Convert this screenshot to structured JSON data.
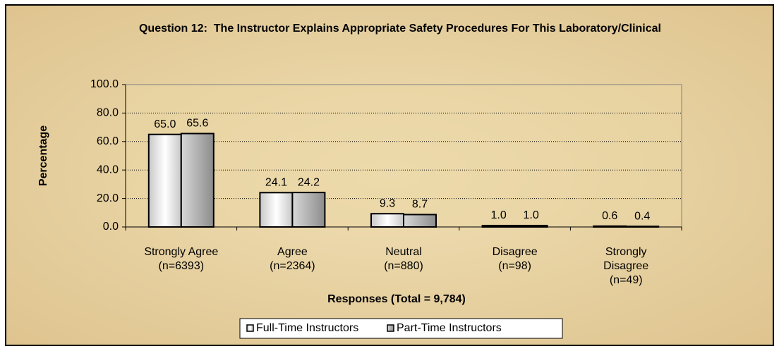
{
  "chart_data": {
    "type": "bar",
    "title": "Question 12:  The Instructor Explains Appropriate Safety Procedures For This Laboratory/Clinical",
    "y_label": "Percentage",
    "x_label": "Responses (Total = 9,784)",
    "categories": [
      [
        "Strongly Agree",
        "(n=6393)"
      ],
      [
        "Agree",
        "(n=2364)"
      ],
      [
        "Neutral",
        "(n=880)"
      ],
      [
        "Disagree",
        "(n=98)"
      ],
      [
        "Strongly",
        "Disagree",
        "(n=49)"
      ]
    ],
    "series": [
      {
        "name": "Full-Time Instructors",
        "color": "#c8c8c8",
        "values": [
          65.0,
          24.1,
          9.3,
          1.0,
          0.6
        ],
        "value_labels": [
          "65.0",
          "24.1",
          "9.3",
          "1.0",
          "0.6"
        ]
      },
      {
        "name": "Part-Time Instructors",
        "color": "#8c8c8c",
        "values": [
          65.6,
          24.2,
          8.7,
          1.0,
          0.4
        ],
        "value_labels": [
          "65.6",
          "24.2",
          "8.7",
          "1.0",
          "0.4"
        ]
      }
    ],
    "ylim": [
      0,
      100
    ],
    "yticks": [
      {
        "value": 0,
        "label": "0.0"
      },
      {
        "value": 20,
        "label": "20.0"
      },
      {
        "value": 40,
        "label": "40.0"
      },
      {
        "value": 60,
        "label": "60.0"
      },
      {
        "value": 80,
        "label": "80.0"
      },
      {
        "value": 100,
        "label": "100.0"
      }
    ],
    "grid": true,
    "legend": "bottom"
  }
}
